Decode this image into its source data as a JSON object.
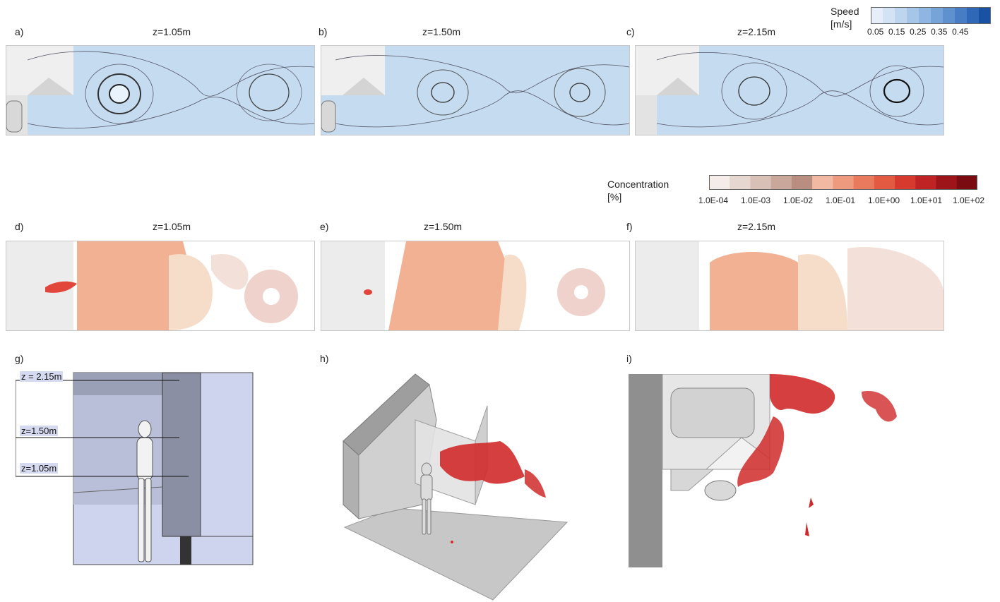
{
  "speed_legend": {
    "title": "Speed",
    "unit": "[m/s]",
    "ticks": [
      "0.05",
      "0.15",
      "0.25",
      "0.35",
      "0.45"
    ],
    "colors": [
      "#e6eff9",
      "#d2e3f4",
      "#bdd5ee",
      "#a6c6e8",
      "#8fb6e1",
      "#77a4d8",
      "#5f91cf",
      "#477dc4",
      "#2f68b7",
      "#1a52a3"
    ]
  },
  "concentration_legend": {
    "title": "Concentration",
    "unit": "[%]",
    "ticks": [
      "1.0E-04",
      "1.0E-03",
      "1.0E-02",
      "1.0E-01",
      "1.0E+00",
      "1.0E+01",
      "1.0E+02"
    ],
    "colors": [
      "#f3ece8",
      "#e6d7d0",
      "#d8c0b6",
      "#c9a79b",
      "#b98e80",
      "#f1b9a2",
      "#ee9a7e",
      "#ea7a5d",
      "#e35a42",
      "#d63a2f",
      "#bf2324",
      "#9e1519",
      "#7a0b10"
    ]
  },
  "speed_panels": [
    {
      "label": "a)",
      "title": "z=1.05m"
    },
    {
      "label": "b)",
      "title": "z=1.50m"
    },
    {
      "label": "c)",
      "title": "z=2.15m"
    }
  ],
  "concentration_panels": [
    {
      "label": "d)",
      "title": "z=1.05m"
    },
    {
      "label": "e)",
      "title": "z=1.50m"
    },
    {
      "label": "f)",
      "title": "z=2.15m"
    }
  ],
  "geometry_panels": [
    {
      "label": "g)"
    },
    {
      "label": "h)"
    },
    {
      "label": "i)"
    }
  ],
  "height_levels": [
    "z = 2.15m",
    "z=1.50m",
    "z=1.05m"
  ]
}
